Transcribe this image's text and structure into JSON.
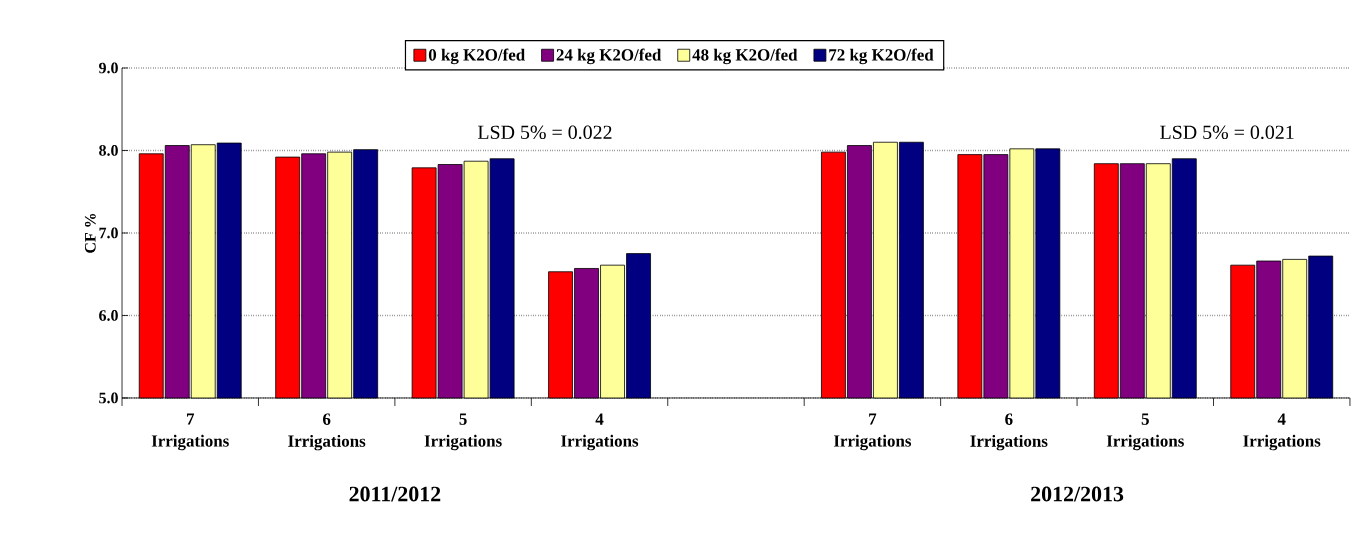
{
  "chart_data": {
    "type": "bar",
    "ylabel": "CF %",
    "categories": [
      "7 Irrigations",
      "6 Irrigations",
      "5 Irrigations",
      "4 Irrigations",
      null,
      "7 Irrigations",
      "6 Irrigations",
      "5 Irrigations",
      "4 Irrigations"
    ],
    "series": [
      {
        "name": "0 kg K2O/fed",
        "color": "#ff0000",
        "values": [
          7.96,
          7.92,
          7.79,
          6.53,
          null,
          7.98,
          7.95,
          7.84,
          6.61
        ]
      },
      {
        "name": "24 kg K2O/fed",
        "color": "#800080",
        "values": [
          8.06,
          7.96,
          7.83,
          6.57,
          null,
          8.06,
          7.95,
          7.84,
          6.66
        ]
      },
      {
        "name": "48 kg K2O/fed",
        "color": "#ffff99",
        "values": [
          8.07,
          7.98,
          7.87,
          6.61,
          null,
          8.1,
          8.02,
          7.84,
          6.68
        ]
      },
      {
        "name": "72 kg K2O/fed",
        "color": "#000080",
        "values": [
          8.09,
          8.01,
          7.9,
          6.75,
          null,
          8.1,
          8.02,
          7.9,
          6.72
        ]
      }
    ],
    "ylim": [
      5,
      9
    ],
    "yticks": [
      {
        "value": 5,
        "label": "5.0"
      },
      {
        "value": 6,
        "label": "6.0"
      },
      {
        "value": 7,
        "label": "7.0"
      },
      {
        "value": 8,
        "label": "8.0"
      },
      {
        "value": 9,
        "label": "9.0"
      }
    ],
    "grid": "y",
    "legend": "top",
    "annotations": [
      "LSD 5% = 0.022",
      "LSD 5% = 0.021",
      "2011/2012",
      "2012/2013"
    ]
  }
}
